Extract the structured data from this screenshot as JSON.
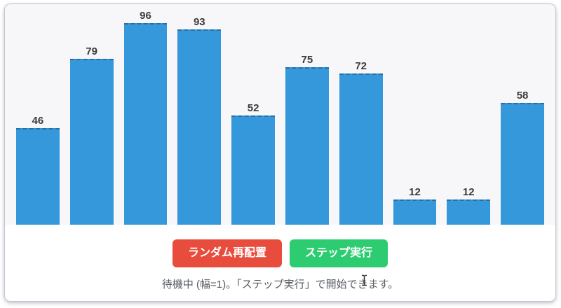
{
  "chart_data": {
    "type": "bar",
    "values": [
      46,
      79,
      96,
      93,
      52,
      75,
      72,
      12,
      12,
      58
    ],
    "value_labels": [
      "46",
      "79",
      "96",
      "93",
      "52",
      "75",
      "72",
      "12",
      "12",
      "58"
    ],
    "title": "",
    "xlabel": "",
    "ylabel": "",
    "ylim": [
      0,
      105
    ],
    "grid": false,
    "legend": false,
    "bar_color": "#3498db",
    "bar_top_border_color": "#2a6fa3",
    "label_color": "#3b3b3b",
    "plot_background": "#f7f7f9"
  },
  "controls": {
    "shuffle_button_label": "ランダム再配置",
    "step_button_label": "ステップ実行",
    "shuffle_button_color": "#e74c3c",
    "step_button_color": "#2ecc71"
  },
  "status": {
    "text": "待機中 (幅=1)。「ステップ実行」で開始できます。"
  }
}
